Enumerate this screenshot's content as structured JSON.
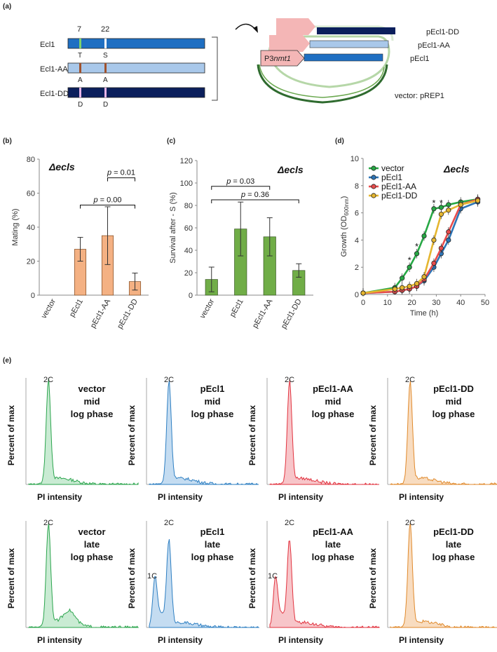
{
  "panel_labels": [
    "(a)",
    "(b)",
    "(c)",
    "(d)",
    "(e)"
  ],
  "panel_a": {
    "positions": [
      "7",
      "22"
    ],
    "constructs": [
      {
        "name": "Ecl1",
        "res1": "T",
        "res2": "S",
        "fill": "#1f6fc2",
        "mark1": "#7fd36b",
        "mark2": "#ffffff"
      },
      {
        "name": "Ecl1-AA",
        "res1": "A",
        "res2": "A",
        "fill": "#a9c8ea",
        "mark1": "#a0522d",
        "mark2": "#a0522d"
      },
      {
        "name": "Ecl1-DD",
        "res1": "D",
        "res2": "D",
        "fill": "#0b1f5c",
        "mark1": "#e7b4e7",
        "mark2": "#e7b4e7"
      }
    ],
    "plasmid_labels": [
      "pEcl1-DD",
      "pEcl1-AA",
      "pEcl1"
    ],
    "promoter": {
      "prefix": "P3",
      "italic": "nmt1"
    },
    "vector_label": "vector: pREP1"
  },
  "chart_data": [
    {
      "id": "b",
      "type": "bar",
      "annotation": "Δecls",
      "ylabel": "Mating (%)",
      "ylim": [
        0,
        80
      ],
      "yticks": [
        0,
        20,
        40,
        60,
        80
      ],
      "categories": [
        "vector",
        "pEcl1",
        "pEcl1-AA",
        "pEcl1-DD"
      ],
      "values": [
        0,
        27,
        35,
        8
      ],
      "errors": [
        0,
        7,
        17,
        5
      ],
      "color": "#f4b183",
      "stroke": "#7f4a22",
      "pvalues": [
        {
          "text": "p = 0.01",
          "from": 2,
          "to": 3,
          "y": 69
        },
        {
          "text": "p = 0.00",
          "from": 1,
          "to": 3,
          "y": 53
        }
      ]
    },
    {
      "id": "c",
      "type": "bar",
      "annotation": "Δecls",
      "ylabel": "Survival after - S (%)",
      "ylim": [
        0,
        120
      ],
      "yticks": [
        0,
        20,
        40,
        60,
        80,
        100,
        120
      ],
      "categories": [
        "vector",
        "pEcl1",
        "pEcl1-AA",
        "pEcl1-DD"
      ],
      "values": [
        14,
        59,
        52,
        22
      ],
      "errors": [
        11,
        24,
        17,
        6
      ],
      "color": "#70ad47",
      "stroke": "#385723",
      "pvalues": [
        {
          "text": "p = 0.03",
          "from": 0,
          "to": 2,
          "y": 97
        },
        {
          "text": "p = 0.36",
          "from": 0,
          "to": 3,
          "y": 85
        }
      ]
    },
    {
      "id": "d",
      "type": "line",
      "annotation": "Δecls",
      "xlabel": "Time (h)",
      "ylabel": "Growth (OD",
      "ylabel_sub": "600nm",
      "ylabel_end": ")",
      "xlim": [
        0,
        50
      ],
      "ylim": [
        0,
        10
      ],
      "xticks": [
        0,
        10,
        20,
        30,
        40,
        50
      ],
      "yticks": [
        0,
        2,
        4,
        6,
        8,
        10
      ],
      "star": "*",
      "star_points": [
        {
          "x": 19,
          "y": 2.6
        },
        {
          "x": 22,
          "y": 3.6
        },
        {
          "x": 29,
          "y": 6.8
        },
        {
          "x": 32,
          "y": 6.8
        }
      ],
      "series": [
        {
          "name": "vector",
          "color": "#27a845",
          "x": [
            0,
            13,
            16,
            19,
            22,
            25,
            29,
            32,
            35,
            40,
            47
          ],
          "y": [
            0.1,
            0.5,
            1.2,
            2.0,
            3.0,
            4.3,
            6.3,
            6.4,
            6.6,
            6.8,
            7.0
          ]
        },
        {
          "name": "pEcl1",
          "color": "#2e75b6",
          "x": [
            0,
            13,
            16,
            19,
            22,
            25,
            29,
            32,
            35,
            40,
            47
          ],
          "y": [
            0.1,
            0.2,
            0.3,
            0.4,
            0.6,
            1.0,
            2.0,
            3.0,
            4.0,
            6.3,
            6.8
          ]
        },
        {
          "name": "pEcl1-AA",
          "color": "#e74c4c",
          "x": [
            0,
            13,
            16,
            19,
            22,
            25,
            29,
            32,
            35,
            40,
            47
          ],
          "y": [
            0.1,
            0.2,
            0.3,
            0.4,
            0.6,
            1.1,
            2.3,
            3.4,
            4.6,
            6.6,
            7.0
          ]
        },
        {
          "name": "pEcl1-DD",
          "color": "#e5b630",
          "x": [
            0,
            13,
            16,
            19,
            22,
            25,
            29,
            32,
            35,
            40,
            47
          ],
          "y": [
            0.1,
            0.4,
            0.5,
            0.6,
            0.8,
            1.3,
            4.0,
            5.9,
            6.2,
            6.6,
            6.9
          ]
        }
      ]
    }
  ],
  "panel_e": {
    "ylabel": "Percent of max",
    "xlabel": "PI intensity",
    "peak_2c": "2C",
    "peak_1c": "1C",
    "plots": [
      {
        "sample": "vector",
        "phase1": "mid",
        "phase2": "log phase",
        "color": "#2ca54e",
        "fill": "#c9ebd3",
        "one_c": false,
        "shoulder": false
      },
      {
        "sample": "pEcl1",
        "phase1": "mid",
        "phase2": "log phase",
        "color": "#2e7fc2",
        "fill": "#c4dcf1",
        "one_c": false,
        "shoulder": false
      },
      {
        "sample": "pEcl1-AA",
        "phase1": "mid",
        "phase2": "log phase",
        "color": "#e2333f",
        "fill": "#f7c5c9",
        "one_c": false,
        "shoulder": false
      },
      {
        "sample": "pEcl1-DD",
        "phase1": "mid",
        "phase2": "log phase",
        "color": "#e08a2c",
        "fill": "#f8dcc0",
        "one_c": false,
        "shoulder": false
      },
      {
        "sample": "vector",
        "phase1": "late",
        "phase2": "log phase",
        "color": "#2ca54e",
        "fill": "#c9ebd3",
        "one_c": false,
        "shoulder": true
      },
      {
        "sample": "pEcl1",
        "phase1": "late",
        "phase2": "log phase",
        "color": "#2e7fc2",
        "fill": "#c4dcf1",
        "one_c": true,
        "shoulder": false
      },
      {
        "sample": "pEcl1-AA",
        "phase1": "late",
        "phase2": "log phase",
        "color": "#e2333f",
        "fill": "#f7c5c9",
        "one_c": true,
        "shoulder": false
      },
      {
        "sample": "pEcl1-DD",
        "phase1": "late",
        "phase2": "log phase",
        "color": "#e08a2c",
        "fill": "#f8dcc0",
        "one_c": false,
        "shoulder": false
      }
    ]
  }
}
